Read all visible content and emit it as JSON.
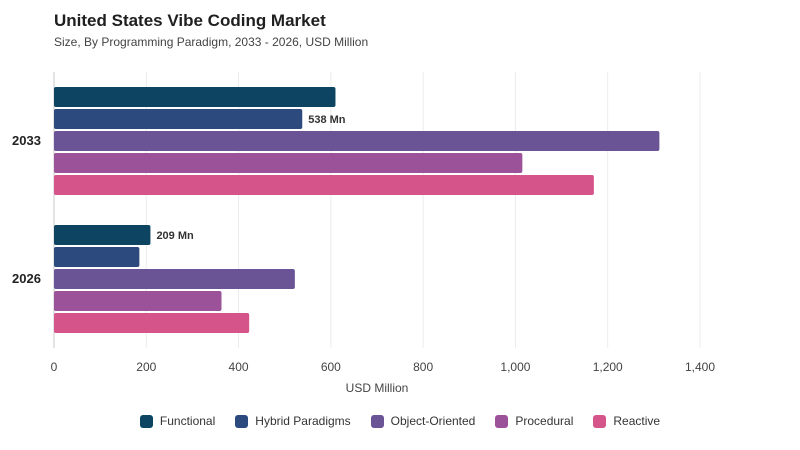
{
  "chart_data": {
    "type": "bar",
    "orientation": "horizontal",
    "title": "United States Vibe Coding Market",
    "subtitle": "Size, By Programming Paradigm, 2033 - 2026, USD Million",
    "xlabel": "USD Million",
    "ylabel": "",
    "xlim": [
      0,
      1400
    ],
    "xticks": [
      0,
      200,
      400,
      600,
      800,
      1000,
      1200,
      1400
    ],
    "xtick_labels": [
      "0",
      "200",
      "400",
      "600",
      "800",
      "1,000",
      "1,200",
      "1,400"
    ],
    "grid": true,
    "legend_position": "bottom",
    "categories": [
      "2033",
      "2026"
    ],
    "series": [
      {
        "name": "Functional",
        "color": "#0d4461",
        "values": [
          610,
          209
        ]
      },
      {
        "name": "Hybrid Paradigms",
        "color": "#2d4a7e",
        "values": [
          538,
          185
        ]
      },
      {
        "name": "Object-Oriented",
        "color": "#6b5495",
        "values": [
          1312,
          522
        ]
      },
      {
        "name": "Procedural",
        "color": "#9c5299",
        "values": [
          1015,
          363
        ]
      },
      {
        "name": "Reactive",
        "color": "#d5558b",
        "values": [
          1170,
          423
        ]
      }
    ],
    "data_labels": [
      {
        "category": "2033",
        "series": "Hybrid Paradigms",
        "text": "538 Mn"
      },
      {
        "category": "2026",
        "series": "Functional",
        "text": "209 Mn"
      }
    ]
  }
}
